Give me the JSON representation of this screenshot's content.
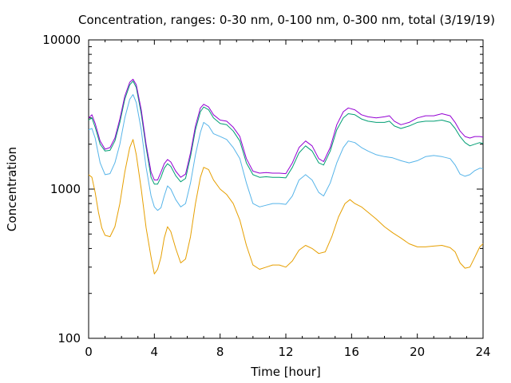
{
  "chart_data": {
    "type": "line",
    "title": "Concentration, ranges: 0-30 nm, 0-100 nm, 0-300 nm, total (3/19/19)",
    "xlabel": "Time [hour]",
    "ylabel": "Concentration",
    "xlim": [
      0,
      24
    ],
    "ylim": [
      100,
      10000
    ],
    "y_scale": "log",
    "grid": false,
    "legend": "none",
    "x_ticks": [
      0,
      4,
      8,
      12,
      16,
      20,
      24
    ],
    "y_ticks": [
      100,
      1000,
      10000
    ],
    "x_ticklabels": [
      "0",
      "4",
      "8",
      "12",
      "16",
      "20",
      "24"
    ],
    "y_ticklabels": [
      "100",
      "1000",
      "10000"
    ],
    "series": [
      {
        "color": "#e69f00",
        "points": [
          [
            0,
            1250
          ],
          [
            0.2,
            1200
          ],
          [
            0.4,
            950
          ],
          [
            0.6,
            700
          ],
          [
            0.8,
            550
          ],
          [
            1.0,
            490
          ],
          [
            1.3,
            480
          ],
          [
            1.6,
            560
          ],
          [
            1.9,
            800
          ],
          [
            2.2,
            1300
          ],
          [
            2.5,
            1900
          ],
          [
            2.7,
            2150
          ],
          [
            2.9,
            1700
          ],
          [
            3.2,
            1000
          ],
          [
            3.5,
            550
          ],
          [
            3.8,
            350
          ],
          [
            4.0,
            270
          ],
          [
            4.2,
            290
          ],
          [
            4.4,
            350
          ],
          [
            4.6,
            470
          ],
          [
            4.8,
            560
          ],
          [
            5.0,
            520
          ],
          [
            5.3,
            400
          ],
          [
            5.6,
            320
          ],
          [
            5.9,
            340
          ],
          [
            6.2,
            480
          ],
          [
            6.5,
            800
          ],
          [
            6.8,
            1200
          ],
          [
            7.0,
            1400
          ],
          [
            7.3,
            1350
          ],
          [
            7.6,
            1150
          ],
          [
            8.0,
            1000
          ],
          [
            8.4,
            920
          ],
          [
            8.8,
            800
          ],
          [
            9.2,
            620
          ],
          [
            9.6,
            420
          ],
          [
            10.0,
            310
          ],
          [
            10.4,
            290
          ],
          [
            10.8,
            300
          ],
          [
            11.2,
            310
          ],
          [
            11.6,
            310
          ],
          [
            12.0,
            300
          ],
          [
            12.4,
            330
          ],
          [
            12.8,
            390
          ],
          [
            13.2,
            420
          ],
          [
            13.6,
            400
          ],
          [
            14.0,
            370
          ],
          [
            14.4,
            380
          ],
          [
            14.8,
            480
          ],
          [
            15.2,
            650
          ],
          [
            15.6,
            800
          ],
          [
            15.9,
            850
          ],
          [
            16.2,
            800
          ],
          [
            16.6,
            760
          ],
          [
            17.0,
            700
          ],
          [
            17.5,
            630
          ],
          [
            18.0,
            560
          ],
          [
            18.5,
            510
          ],
          [
            19.0,
            470
          ],
          [
            19.5,
            430
          ],
          [
            20.0,
            410
          ],
          [
            20.5,
            410
          ],
          [
            21.0,
            415
          ],
          [
            21.5,
            420
          ],
          [
            22.0,
            405
          ],
          [
            22.3,
            380
          ],
          [
            22.6,
            320
          ],
          [
            22.9,
            295
          ],
          [
            23.2,
            300
          ],
          [
            23.5,
            350
          ],
          [
            23.8,
            410
          ],
          [
            24.0,
            430
          ]
        ]
      },
      {
        "color": "#56b4e9",
        "points": [
          [
            0,
            2500
          ],
          [
            0.2,
            2550
          ],
          [
            0.4,
            2200
          ],
          [
            0.7,
            1500
          ],
          [
            1.0,
            1250
          ],
          [
            1.3,
            1270
          ],
          [
            1.6,
            1500
          ],
          [
            1.9,
            2000
          ],
          [
            2.2,
            3000
          ],
          [
            2.5,
            4000
          ],
          [
            2.7,
            4300
          ],
          [
            2.9,
            3800
          ],
          [
            3.2,
            2500
          ],
          [
            3.5,
            1400
          ],
          [
            3.8,
            900
          ],
          [
            4.0,
            760
          ],
          [
            4.2,
            720
          ],
          [
            4.4,
            750
          ],
          [
            4.6,
            900
          ],
          [
            4.8,
            1050
          ],
          [
            5.0,
            1000
          ],
          [
            5.3,
            850
          ],
          [
            5.6,
            760
          ],
          [
            5.9,
            800
          ],
          [
            6.2,
            1100
          ],
          [
            6.5,
            1700
          ],
          [
            6.8,
            2400
          ],
          [
            7.0,
            2800
          ],
          [
            7.3,
            2650
          ],
          [
            7.6,
            2350
          ],
          [
            8.0,
            2250
          ],
          [
            8.4,
            2150
          ],
          [
            8.8,
            1900
          ],
          [
            9.2,
            1600
          ],
          [
            9.6,
            1100
          ],
          [
            10.0,
            800
          ],
          [
            10.4,
            760
          ],
          [
            10.8,
            780
          ],
          [
            11.2,
            800
          ],
          [
            11.6,
            800
          ],
          [
            12.0,
            790
          ],
          [
            12.4,
            900
          ],
          [
            12.8,
            1150
          ],
          [
            13.2,
            1250
          ],
          [
            13.6,
            1150
          ],
          [
            14.0,
            950
          ],
          [
            14.3,
            900
          ],
          [
            14.7,
            1100
          ],
          [
            15.1,
            1500
          ],
          [
            15.5,
            1900
          ],
          [
            15.8,
            2100
          ],
          [
            16.2,
            2050
          ],
          [
            16.6,
            1900
          ],
          [
            17.0,
            1800
          ],
          [
            17.5,
            1700
          ],
          [
            18.0,
            1650
          ],
          [
            18.5,
            1620
          ],
          [
            19.0,
            1550
          ],
          [
            19.5,
            1500
          ],
          [
            20.0,
            1550
          ],
          [
            20.5,
            1650
          ],
          [
            21.0,
            1680
          ],
          [
            21.5,
            1650
          ],
          [
            22.0,
            1600
          ],
          [
            22.3,
            1450
          ],
          [
            22.6,
            1260
          ],
          [
            22.9,
            1220
          ],
          [
            23.2,
            1250
          ],
          [
            23.5,
            1330
          ],
          [
            23.8,
            1380
          ],
          [
            24.0,
            1370
          ]
        ]
      },
      {
        "color": "#009e73",
        "points": [
          [
            0,
            2900
          ],
          [
            0.2,
            3000
          ],
          [
            0.4,
            2600
          ],
          [
            0.7,
            2000
          ],
          [
            1.0,
            1800
          ],
          [
            1.3,
            1820
          ],
          [
            1.6,
            2100
          ],
          [
            1.9,
            2800
          ],
          [
            2.2,
            4000
          ],
          [
            2.5,
            5000
          ],
          [
            2.7,
            5300
          ],
          [
            2.9,
            4800
          ],
          [
            3.2,
            3200
          ],
          [
            3.5,
            1900
          ],
          [
            3.8,
            1200
          ],
          [
            4.0,
            1080
          ],
          [
            4.2,
            1080
          ],
          [
            4.4,
            1200
          ],
          [
            4.6,
            1380
          ],
          [
            4.8,
            1480
          ],
          [
            5.0,
            1420
          ],
          [
            5.3,
            1230
          ],
          [
            5.6,
            1120
          ],
          [
            5.9,
            1180
          ],
          [
            6.2,
            1650
          ],
          [
            6.5,
            2500
          ],
          [
            6.8,
            3300
          ],
          [
            7.0,
            3550
          ],
          [
            7.3,
            3400
          ],
          [
            7.6,
            3000
          ],
          [
            8.0,
            2750
          ],
          [
            8.4,
            2700
          ],
          [
            8.8,
            2450
          ],
          [
            9.2,
            2100
          ],
          [
            9.6,
            1500
          ],
          [
            10.0,
            1250
          ],
          [
            10.4,
            1200
          ],
          [
            10.8,
            1210
          ],
          [
            11.2,
            1200
          ],
          [
            11.6,
            1200
          ],
          [
            12.0,
            1190
          ],
          [
            12.4,
            1400
          ],
          [
            12.8,
            1750
          ],
          [
            13.2,
            1950
          ],
          [
            13.6,
            1800
          ],
          [
            14.0,
            1500
          ],
          [
            14.3,
            1450
          ],
          [
            14.7,
            1800
          ],
          [
            15.1,
            2500
          ],
          [
            15.5,
            3000
          ],
          [
            15.8,
            3200
          ],
          [
            16.2,
            3150
          ],
          [
            16.6,
            2950
          ],
          [
            17.0,
            2850
          ],
          [
            17.5,
            2800
          ],
          [
            18.0,
            2800
          ],
          [
            18.3,
            2850
          ],
          [
            18.6,
            2650
          ],
          [
            19.0,
            2550
          ],
          [
            19.5,
            2650
          ],
          [
            20.0,
            2800
          ],
          [
            20.5,
            2850
          ],
          [
            21.0,
            2850
          ],
          [
            21.5,
            2900
          ],
          [
            22.0,
            2800
          ],
          [
            22.3,
            2550
          ],
          [
            22.6,
            2250
          ],
          [
            22.9,
            2050
          ],
          [
            23.2,
            1950
          ],
          [
            23.5,
            2000
          ],
          [
            23.8,
            2050
          ],
          [
            24.0,
            2020
          ]
        ]
      },
      {
        "color": "#9400d3",
        "points": [
          [
            0,
            3000
          ],
          [
            0.2,
            3150
          ],
          [
            0.4,
            2750
          ],
          [
            0.7,
            2100
          ],
          [
            1.0,
            1850
          ],
          [
            1.3,
            1900
          ],
          [
            1.6,
            2200
          ],
          [
            1.9,
            2950
          ],
          [
            2.2,
            4200
          ],
          [
            2.5,
            5200
          ],
          [
            2.7,
            5450
          ],
          [
            2.9,
            5000
          ],
          [
            3.2,
            3400
          ],
          [
            3.5,
            2000
          ],
          [
            3.8,
            1300
          ],
          [
            4.0,
            1150
          ],
          [
            4.2,
            1150
          ],
          [
            4.4,
            1300
          ],
          [
            4.6,
            1480
          ],
          [
            4.8,
            1580
          ],
          [
            5.0,
            1520
          ],
          [
            5.3,
            1320
          ],
          [
            5.6,
            1200
          ],
          [
            5.9,
            1260
          ],
          [
            6.2,
            1750
          ],
          [
            6.5,
            2650
          ],
          [
            6.8,
            3500
          ],
          [
            7.0,
            3700
          ],
          [
            7.3,
            3550
          ],
          [
            7.6,
            3150
          ],
          [
            8.0,
            2900
          ],
          [
            8.4,
            2850
          ],
          [
            8.8,
            2600
          ],
          [
            9.2,
            2250
          ],
          [
            9.6,
            1600
          ],
          [
            10.0,
            1320
          ],
          [
            10.4,
            1280
          ],
          [
            10.8,
            1290
          ],
          [
            11.2,
            1280
          ],
          [
            11.6,
            1280
          ],
          [
            12.0,
            1270
          ],
          [
            12.4,
            1500
          ],
          [
            12.8,
            1900
          ],
          [
            13.2,
            2100
          ],
          [
            13.6,
            1950
          ],
          [
            14.0,
            1600
          ],
          [
            14.3,
            1530
          ],
          [
            14.7,
            1900
          ],
          [
            15.1,
            2700
          ],
          [
            15.5,
            3300
          ],
          [
            15.8,
            3500
          ],
          [
            16.2,
            3400
          ],
          [
            16.6,
            3150
          ],
          [
            17.0,
            3050
          ],
          [
            17.5,
            3000
          ],
          [
            18.0,
            3050
          ],
          [
            18.3,
            3100
          ],
          [
            18.6,
            2850
          ],
          [
            19.0,
            2700
          ],
          [
            19.5,
            2800
          ],
          [
            20.0,
            3000
          ],
          [
            20.5,
            3100
          ],
          [
            21.0,
            3100
          ],
          [
            21.5,
            3200
          ],
          [
            22.0,
            3100
          ],
          [
            22.3,
            2800
          ],
          [
            22.6,
            2450
          ],
          [
            22.9,
            2250
          ],
          [
            23.2,
            2200
          ],
          [
            23.5,
            2250
          ],
          [
            23.8,
            2250
          ],
          [
            24.0,
            2230
          ]
        ]
      }
    ]
  }
}
